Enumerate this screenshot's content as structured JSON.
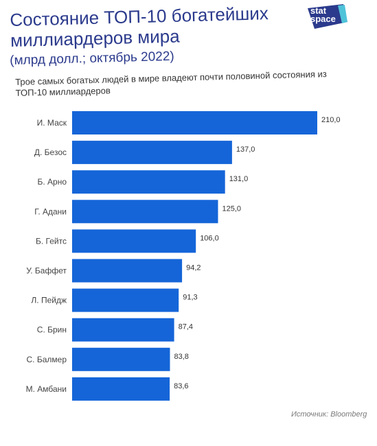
{
  "header": {
    "title": "Состояние ТОП-10 богатейших миллиардеров мира",
    "unit": "(млрд долл.; октябрь 2022)",
    "subtitle": "Трое самых богатых людей в мире владеют почти половиной состояния из ТОП-10 миллиардеров"
  },
  "logo": {
    "text": "stat space",
    "color": "#2b3a8c"
  },
  "source": "Источник: Bloomberg",
  "colors": {
    "bar": "#1565d8",
    "title": "#2b3a8c"
  },
  "chart_data": {
    "type": "bar",
    "orientation": "horizontal",
    "categories": [
      "И. Маск",
      "Д. Безос",
      "Б. Арно",
      "Г. Адани",
      "Б. Гейтс",
      "У. Баффет",
      "Л. Пейдж",
      "С. Брин",
      "С. Балмер",
      "М. Амбани"
    ],
    "values": [
      210.0,
      137.0,
      131.0,
      125.0,
      106.0,
      94.2,
      91.3,
      87.4,
      83.8,
      83.6
    ],
    "value_labels": [
      "210,0",
      "137,0",
      "131,0",
      "125,0",
      "106,0",
      "94,2",
      "91,3",
      "87,4",
      "83,8",
      "83,6"
    ],
    "xlim": [
      0,
      210
    ],
    "grid": false,
    "legend": "none"
  }
}
